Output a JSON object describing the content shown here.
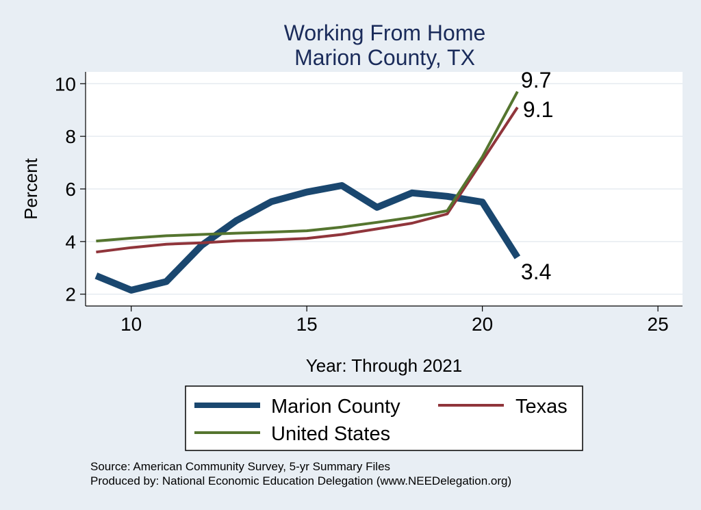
{
  "chart_data": {
    "type": "line",
    "title": [
      "Working From Home",
      "Marion County, TX"
    ],
    "xlabel": "Year: Through 2021",
    "ylabel": "Percent",
    "xlim": [
      8.7,
      25.7
    ],
    "ylim": [
      1.55,
      10.45
    ],
    "xticks": [
      10,
      15,
      20,
      25
    ],
    "yticks": [
      2,
      4,
      6,
      8,
      10
    ],
    "grid": true,
    "legend_position": "bottom",
    "series": [
      {
        "name": "Marion County",
        "color": "#1a476f",
        "x": [
          9,
          10,
          11,
          12,
          13,
          14,
          15,
          16,
          17,
          18,
          19,
          20,
          21
        ],
        "values": [
          2.7,
          2.15,
          2.48,
          3.85,
          4.8,
          5.52,
          5.88,
          6.13,
          5.3,
          5.85,
          5.72,
          5.5,
          3.4
        ],
        "end_label": "3.4"
      },
      {
        "name": "Texas",
        "color": "#90353b",
        "x": [
          9,
          10,
          11,
          12,
          13,
          14,
          15,
          16,
          17,
          18,
          19,
          20,
          21
        ],
        "values": [
          3.6,
          3.77,
          3.9,
          3.95,
          4.03,
          4.06,
          4.12,
          4.27,
          4.48,
          4.7,
          5.05,
          7.07,
          9.1
        ],
        "end_label": "9.1"
      },
      {
        "name": "United States",
        "color": "#55752f",
        "x": [
          9,
          10,
          11,
          12,
          13,
          14,
          15,
          16,
          17,
          18,
          19,
          20,
          21
        ],
        "values": [
          4.02,
          4.13,
          4.22,
          4.27,
          4.32,
          4.36,
          4.41,
          4.55,
          4.73,
          4.92,
          5.17,
          7.22,
          9.7
        ],
        "end_label": "9.7"
      }
    ]
  },
  "notes": [
    "Source: American Community Survey, 5-yr Summary Files",
    "Produced by: National Economic Education Delegation (www.NEEDelegation.org)"
  ]
}
